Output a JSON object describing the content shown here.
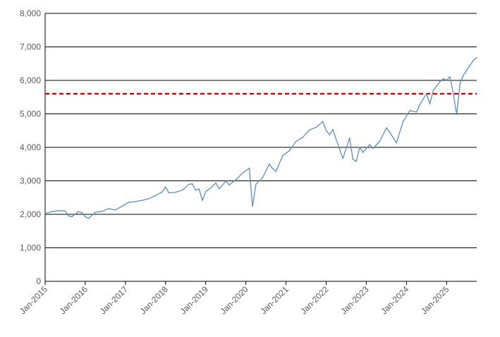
{
  "chart_data": {
    "type": "line",
    "title": "",
    "xlabel": "",
    "ylabel": "",
    "ylim": [
      0,
      8000
    ],
    "yticks": [
      0,
      1000,
      2000,
      3000,
      4000,
      5000,
      6000,
      7000,
      8000
    ],
    "ytick_labels": [
      "0",
      "1,000",
      "2,000",
      "3,000",
      "4,000",
      "5,000",
      "6,000",
      "7,000",
      "8,000"
    ],
    "xlim": [
      "2015-01",
      "2025-10"
    ],
    "xticks": [
      "2015-01",
      "2016-01",
      "2017-01",
      "2018-01",
      "2019-01",
      "2020-01",
      "2021-01",
      "2022-01",
      "2023-01",
      "2024-01",
      "2025-01"
    ],
    "xtick_labels": [
      "Jan-2015",
      "Jan-2016",
      "Jan-2017",
      "Jan-2018",
      "Jan-2019",
      "Jan-2020",
      "Jan-2021",
      "Jan-2022",
      "Jan-2023",
      "Jan-2024",
      "Jan-2025"
    ],
    "grid": "horizontal",
    "legend": "none",
    "series": [
      {
        "color": "#5b8fbf",
        "points": [
          [
            "2015-01",
            2030
          ],
          [
            "2015-03",
            2080
          ],
          [
            "2015-05",
            2110
          ],
          [
            "2015-07",
            2100
          ],
          [
            "2015-08",
            1950
          ],
          [
            "2015-09",
            1930
          ],
          [
            "2015-11",
            2080
          ],
          [
            "2015-12",
            2050
          ],
          [
            "2016-01",
            1930
          ],
          [
            "2016-02",
            1880
          ],
          [
            "2016-04",
            2060
          ],
          [
            "2016-06",
            2090
          ],
          [
            "2016-08",
            2170
          ],
          [
            "2016-10",
            2130
          ],
          [
            "2016-12",
            2240
          ],
          [
            "2017-02",
            2360
          ],
          [
            "2017-04",
            2380
          ],
          [
            "2017-06",
            2420
          ],
          [
            "2017-08",
            2470
          ],
          [
            "2017-10",
            2560
          ],
          [
            "2017-12",
            2670
          ],
          [
            "2018-01",
            2820
          ],
          [
            "2018-02",
            2640
          ],
          [
            "2018-04",
            2660
          ],
          [
            "2018-06",
            2720
          ],
          [
            "2018-08",
            2900
          ],
          [
            "2018-09",
            2910
          ],
          [
            "2018-10",
            2720
          ],
          [
            "2018-11",
            2760
          ],
          [
            "2018-12",
            2420
          ],
          [
            "2019-01",
            2680
          ],
          [
            "2019-03",
            2830
          ],
          [
            "2019-04",
            2940
          ],
          [
            "2019-05",
            2760
          ],
          [
            "2019-07",
            2990
          ],
          [
            "2019-08",
            2880
          ],
          [
            "2019-10",
            3030
          ],
          [
            "2019-12",
            3230
          ],
          [
            "2020-02",
            3380
          ],
          [
            "2020-03",
            2240
          ],
          [
            "2020-04",
            2900
          ],
          [
            "2020-06",
            3100
          ],
          [
            "2020-08",
            3500
          ],
          [
            "2020-09",
            3360
          ],
          [
            "2020-10",
            3280
          ],
          [
            "2020-12",
            3750
          ],
          [
            "2021-02",
            3900
          ],
          [
            "2021-04",
            4180
          ],
          [
            "2021-06",
            4300
          ],
          [
            "2021-08",
            4520
          ],
          [
            "2021-10",
            4600
          ],
          [
            "2021-12",
            4770
          ],
          [
            "2022-01",
            4500
          ],
          [
            "2022-02",
            4380
          ],
          [
            "2022-03",
            4530
          ],
          [
            "2022-05",
            3950
          ],
          [
            "2022-06",
            3670
          ],
          [
            "2022-08",
            4280
          ],
          [
            "2022-09",
            3640
          ],
          [
            "2022-10",
            3580
          ],
          [
            "2022-11",
            4000
          ],
          [
            "2022-12",
            3850
          ],
          [
            "2023-02",
            4080
          ],
          [
            "2023-03",
            3970
          ],
          [
            "2023-05",
            4180
          ],
          [
            "2023-07",
            4580
          ],
          [
            "2023-08",
            4450
          ],
          [
            "2023-10",
            4130
          ],
          [
            "2023-12",
            4770
          ],
          [
            "2024-02",
            5100
          ],
          [
            "2024-04",
            5050
          ],
          [
            "2024-05",
            5280
          ],
          [
            "2024-07",
            5600
          ],
          [
            "2024-08",
            5300
          ],
          [
            "2024-09",
            5700
          ],
          [
            "2024-11",
            5960
          ],
          [
            "2024-12",
            6050
          ],
          [
            "2025-01",
            6000
          ],
          [
            "2025-02",
            6110
          ],
          [
            "2025-03",
            5600
          ],
          [
            "2025-04",
            4980
          ],
          [
            "2025-05",
            5900
          ],
          [
            "2025-06",
            6150
          ],
          [
            "2025-07",
            6300
          ],
          [
            "2025-08",
            6450
          ],
          [
            "2025-09",
            6600
          ],
          [
            "2025-10",
            6680
          ]
        ]
      }
    ],
    "reference_line": {
      "value": 5600,
      "style": "dashed",
      "color": "#c00000"
    }
  }
}
